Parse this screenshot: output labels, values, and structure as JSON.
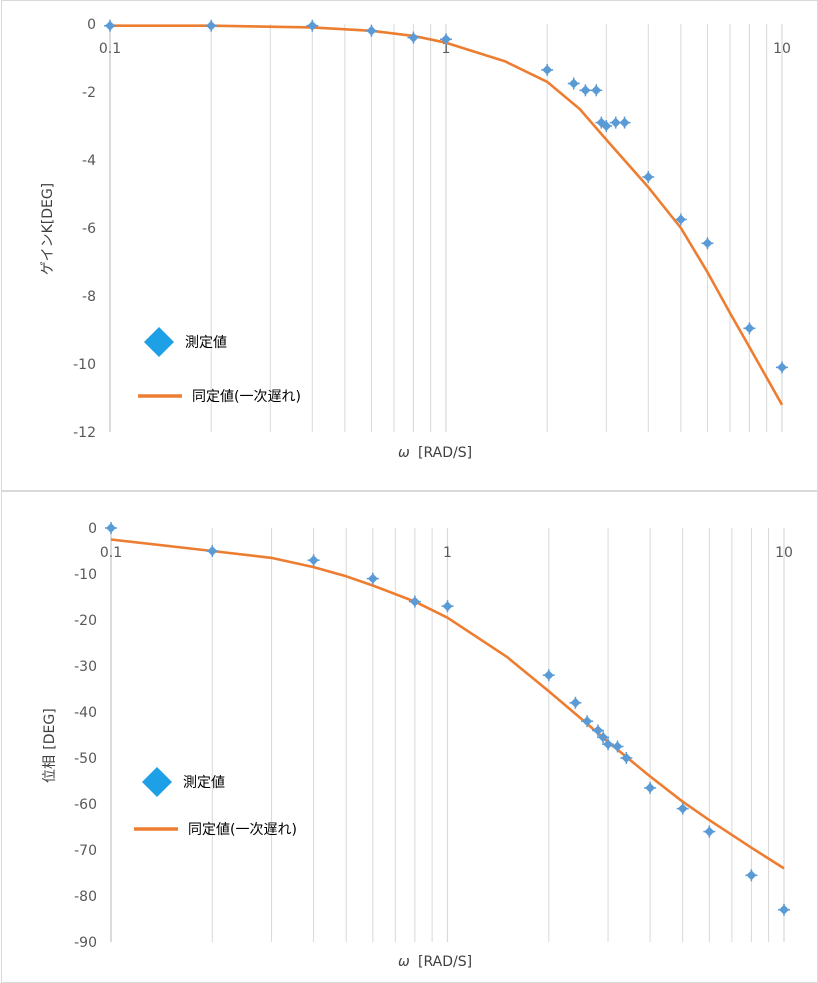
{
  "chart_data": [
    {
      "type": "scatter",
      "xscale": "log",
      "xlim": [
        0.1,
        10
      ],
      "ylim": [
        -12,
        0
      ],
      "x_ticks": [
        {
          "v": 0.1,
          "label": "0.1"
        },
        {
          "v": 1,
          "label": "1"
        },
        {
          "v": 10,
          "label": "10"
        }
      ],
      "y_ticks": [
        {
          "v": 0,
          "label": "0"
        },
        {
          "v": -2,
          "label": "-2"
        },
        {
          "v": -4,
          "label": "-4"
        },
        {
          "v": -6,
          "label": "-6"
        },
        {
          "v": -8,
          "label": "-8"
        },
        {
          "v": -10,
          "label": "-10"
        },
        {
          "v": -12,
          "label": "-12"
        }
      ],
      "xlabel_main": "ω",
      "xlabel_unit": "[RAD/S]",
      "ylabel": "ゲインK[DEG]",
      "legend": {
        "markers_label": "測定値",
        "line_label": "同定値(一次遅れ)"
      },
      "colors": {
        "marker": "#5b9bd5",
        "line": "#ed7d31",
        "legend_marker": "#1ea0e6",
        "gridline": "#d9d9d9"
      },
      "series": [
        {
          "name": "測定値",
          "kind": "markers",
          "x": [
            0.1,
            0.2,
            0.4,
            0.6,
            0.8,
            1.0,
            2.0,
            2.4,
            2.6,
            2.8,
            2.9,
            3.0,
            3.2,
            3.4,
            4.0,
            5.0,
            6.0,
            8.0,
            10.0
          ],
          "y": [
            -0.05,
            -0.05,
            -0.05,
            -0.2,
            -0.4,
            -0.45,
            -1.35,
            -1.75,
            -1.95,
            -1.95,
            -2.9,
            -3.0,
            -2.9,
            -2.9,
            -4.5,
            -5.75,
            -6.45,
            -8.95,
            -10.1
          ]
        },
        {
          "name": "同定値(一次遅れ)",
          "kind": "line",
          "x": [
            0.1,
            0.2,
            0.4,
            0.6,
            0.8,
            1.0,
            1.5,
            2.0,
            2.5,
            3.0,
            4.0,
            5.0,
            6.0,
            7.0,
            8.0,
            10.0
          ],
          "y": [
            -0.05,
            -0.05,
            -0.1,
            -0.2,
            -0.35,
            -0.55,
            -1.1,
            -1.7,
            -2.5,
            -3.4,
            -4.8,
            -6.0,
            -7.3,
            -8.5,
            -9.5,
            -11.2
          ]
        }
      ]
    },
    {
      "type": "scatter",
      "xscale": "log",
      "xlim": [
        0.1,
        10
      ],
      "ylim": [
        -90,
        0
      ],
      "x_ticks": [
        {
          "v": 0.1,
          "label": "0.1"
        },
        {
          "v": 1,
          "label": "1"
        },
        {
          "v": 10,
          "label": "10"
        }
      ],
      "y_ticks": [
        {
          "v": 0,
          "label": "0"
        },
        {
          "v": -10,
          "label": "-10"
        },
        {
          "v": -20,
          "label": "-20"
        },
        {
          "v": -30,
          "label": "-30"
        },
        {
          "v": -40,
          "label": "-40"
        },
        {
          "v": -50,
          "label": "-50"
        },
        {
          "v": -60,
          "label": "-60"
        },
        {
          "v": -70,
          "label": "-70"
        },
        {
          "v": -80,
          "label": "-80"
        },
        {
          "v": -90,
          "label": "-90"
        }
      ],
      "xlabel_main": "ω",
      "xlabel_unit": "[RAD/S]",
      "ylabel_main": "位相",
      "ylabel_unit": "[DEG]",
      "legend": {
        "markers_label": "測定値",
        "line_label": "同定値(一次遅れ)"
      },
      "colors": {
        "marker": "#5b9bd5",
        "line": "#ed7d31",
        "legend_marker": "#1ea0e6",
        "gridline": "#d9d9d9"
      },
      "series": [
        {
          "name": "測定値",
          "kind": "markers",
          "x": [
            0.1,
            0.2,
            0.4,
            0.6,
            0.8,
            1.0,
            2.0,
            2.4,
            2.6,
            2.8,
            2.9,
            3.0,
            3.2,
            3.4,
            4.0,
            5.0,
            6.0,
            8.0,
            10.0
          ],
          "y": [
            0,
            -5,
            -7,
            -11,
            -16,
            -17,
            -32,
            -38,
            -42,
            -44,
            -45.5,
            -47,
            -47.5,
            -50,
            -56.5,
            -61,
            -66,
            -75.5,
            -83
          ]
        },
        {
          "name": "同定値(一次遅れ)",
          "kind": "line",
          "x": [
            0.1,
            0.2,
            0.3,
            0.4,
            0.5,
            0.6,
            0.8,
            1.0,
            1.5,
            2.0,
            2.5,
            3.0,
            4.0,
            5.0,
            6.0,
            8.0,
            10.0
          ],
          "y": [
            -2.5,
            -5,
            -6.5,
            -8.5,
            -10.5,
            -12.5,
            -16,
            -19.5,
            -28,
            -35.5,
            -41.5,
            -46.5,
            -54,
            -59.5,
            -63.5,
            -69.5,
            -74
          ]
        }
      ]
    }
  ]
}
